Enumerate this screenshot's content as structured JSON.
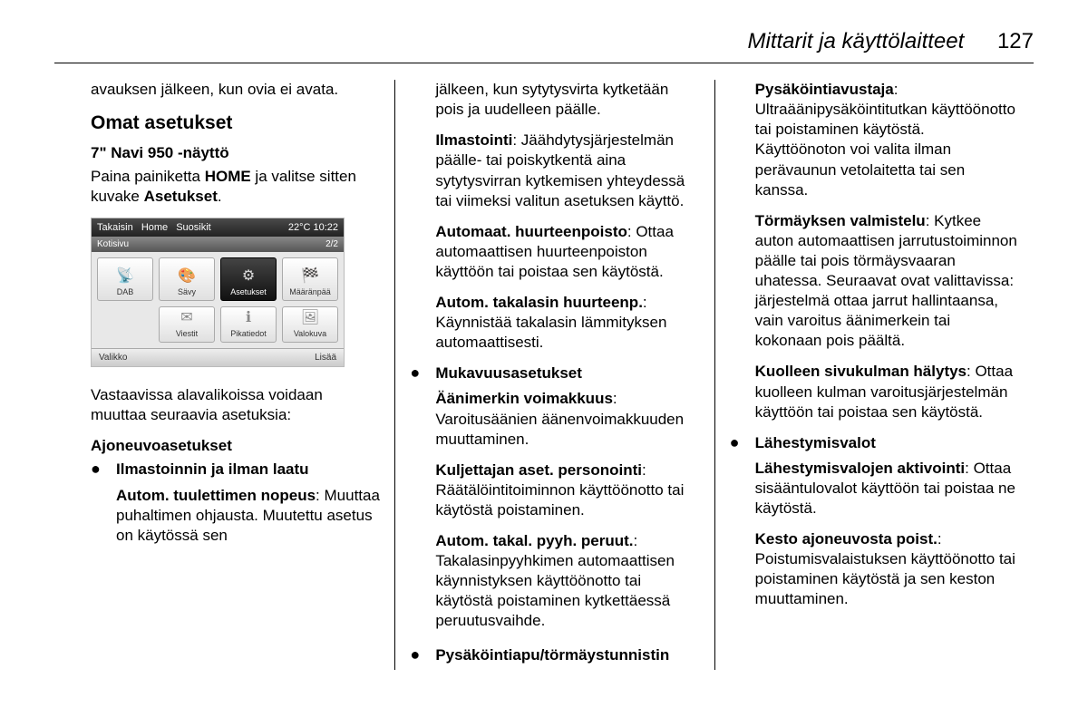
{
  "header": {
    "title": "Mittarit ja käyttölaitteet",
    "page": "127"
  },
  "col1": {
    "lead": "avauksen jälkeen, kun ovia ei avata.",
    "h1": "Omat asetukset",
    "h2": "7\" Navi 950 -näyttö",
    "intro_a": "Paina painiketta ",
    "intro_home": "HOME",
    "intro_b": " ja valitse sitten kuvake ",
    "intro_aset": "Asetukset",
    "intro_c": ".",
    "screenshot": {
      "top_left": [
        "Takaisin",
        "Home",
        "Suosikit"
      ],
      "top_right": "22°C   10:22",
      "sub_left": "Kotisivu",
      "sub_right": "2/2",
      "tiles": [
        {
          "icon": "📡",
          "label": "DAB"
        },
        {
          "icon": "🎨",
          "label": "Sävy"
        },
        {
          "icon": "⚙",
          "label": "Asetukset",
          "sel": true
        },
        {
          "icon": "🏁",
          "label": "Määränpää"
        }
      ],
      "tiles2": [
        {
          "icon": "✉",
          "label": "Viestit"
        },
        {
          "icon": "ℹ",
          "label": "Pikatiedot"
        },
        {
          "icon": "🖼",
          "label": "Valokuva"
        }
      ],
      "bot_left": "Valikko",
      "bot_right": "Lisää"
    },
    "after": "Vastaavissa alavalikoissa voidaan muuttaa seuraavia asetuksia:",
    "sec_title": "Ajoneuvoasetukset",
    "b1_title": "Ilmastoinnin ja ilman laatu",
    "b1_sub_bold": "Autom. tuulettimen nopeus",
    "b1_sub_txt": ": Muuttaa puhaltimen ohjausta. Muutettu asetus on käytössä sen"
  },
  "col2": {
    "cont": "jälkeen, kun sytytysvirta kytketään pois ja uudelleen päälle.",
    "p1_b": "Ilmastointi",
    "p1_t": ": Jäähdytysjärjestelmän päälle- tai poiskytkentä aina sytytysvirran kytkemisen yhteydessä tai viimeksi valitun asetuksen käyttö.",
    "p2_b": "Automaat. huurteenpoisto",
    "p2_t": ": Ottaa automaattisen huurteenpoiston käyttöön tai poistaa sen käytöstä.",
    "p3_b": "Autom. takalasin huurteenp.",
    "p3_t": ": Käynnistää takalasin lämmityksen automaattisesti.",
    "b2_title": "Mukavuusasetukset",
    "p4_b": "Äänimerkin voimakkuus",
    "p4_t": ": Varoitusäänien äänenvoimakkuuden muuttaminen.",
    "p5_b": "Kuljettajan aset. personointi",
    "p5_t": ": Räätälöintitoiminnon käyttöönotto tai käytöstä poistaminen.",
    "p6_b": "Autom. takal. pyyh. peruut.",
    "p6_t": ": Takalasinpyyhkimen automaattisen käynnistyksen käyttöönotto tai käytöstä poistaminen kytkettäessä peruutusvaihde.",
    "b3_title": "Pysäköintiapu/törmäystunnistin"
  },
  "col3": {
    "p1_b": "Pysäköintiavustaja",
    "p1_t": ": Ultraäänipysäköintitutkan käyttöönotto tai poistaminen käytöstä. Käyttöönoton voi valita ilman perävaunun vetolaitetta tai sen kanssa.",
    "p2_b": "Törmäyksen valmistelu",
    "p2_t": ": Kytkee auton automaattisen jarrutustoiminnon päälle tai pois törmäysvaaran uhatessa. Seuraavat ovat valittavissa: järjestelmä ottaa jarrut hallintaansa, vain varoitus äänimerkein tai kokonaan pois päältä.",
    "p3_b": "Kuolleen sivukulman hälytys",
    "p3_t": ": Ottaa kuolleen kulman varoitusjärjestelmän käyttöön tai poistaa sen käytöstä.",
    "b1_title": "Lähestymisvalot",
    "p4_b": "Lähestymisvalojen aktivointi",
    "p4_t": ": Ottaa sisääntulovalot käyttöön tai poistaa ne käytöstä.",
    "p5_b": "Kesto ajoneuvosta poist.",
    "p5_t": ": Poistumisvalaistuksen käyttöönotto tai poistaminen käytöstä ja sen keston muuttaminen."
  }
}
